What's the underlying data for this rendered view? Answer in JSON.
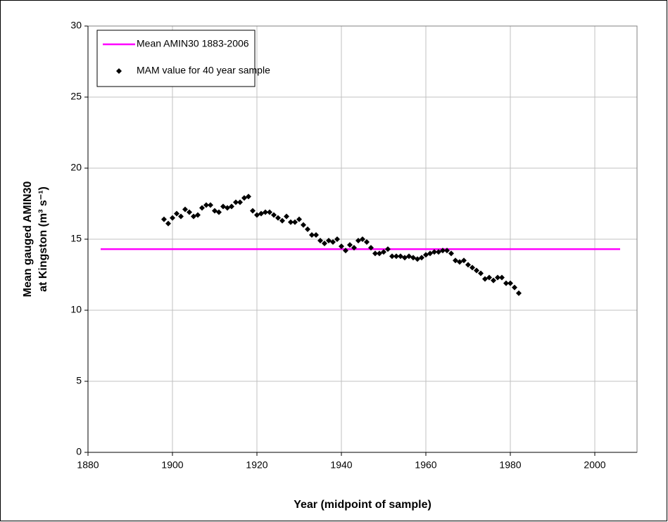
{
  "chart_data": {
    "type": "scatter",
    "xlabel": "Year (midpoint of sample)",
    "ylabel": [
      "Mean gauged AMIN30",
      "at Kingston (m³ s⁻¹)"
    ],
    "xlim": [
      1880,
      2010
    ],
    "xticks": [
      1880,
      1900,
      1920,
      1940,
      1960,
      1980,
      2000
    ],
    "ylim": [
      0,
      30
    ],
    "yticks": [
      0,
      5,
      10,
      15,
      20,
      25,
      30
    ],
    "grid": true,
    "legend": "upper left",
    "series": [
      {
        "name": "Mean AMIN30 1883-2006",
        "color": "#ff00ff",
        "mode": "line",
        "x": [
          1883,
          2006
        ],
        "values": [
          14.3,
          14.3
        ]
      },
      {
        "name": "MAM value for 40 year sample",
        "color": "#000000",
        "mode": "markers",
        "x": [
          1898,
          1899,
          1900,
          1901,
          1902,
          1903,
          1904,
          1905,
          1906,
          1907,
          1908,
          1909,
          1910,
          1911,
          1912,
          1913,
          1914,
          1915,
          1916,
          1917,
          1918,
          1919,
          1920,
          1921,
          1922,
          1923,
          1924,
          1925,
          1926,
          1927,
          1928,
          1929,
          1930,
          1931,
          1932,
          1933,
          1934,
          1935,
          1936,
          1937,
          1938,
          1939,
          1940,
          1941,
          1942,
          1943,
          1944,
          1945,
          1946,
          1947,
          1948,
          1949,
          1950,
          1951,
          1952,
          1953,
          1954,
          1955,
          1956,
          1957,
          1958,
          1959,
          1960,
          1961,
          1962,
          1963,
          1964,
          1965,
          1966,
          1967,
          1968,
          1969,
          1970,
          1971,
          1972,
          1973,
          1974,
          1975,
          1976,
          1977,
          1978,
          1979,
          1980,
          1981,
          1982
        ],
        "values": [
          16.4,
          16.1,
          16.5,
          16.8,
          16.6,
          17.1,
          16.9,
          16.6,
          16.7,
          17.2,
          17.4,
          17.4,
          17.0,
          16.9,
          17.3,
          17.2,
          17.3,
          17.6,
          17.6,
          17.9,
          18.0,
          17.0,
          16.7,
          16.8,
          16.9,
          16.9,
          16.7,
          16.5,
          16.3,
          16.6,
          16.2,
          16.2,
          16.4,
          16.0,
          15.7,
          15.3,
          15.3,
          14.9,
          14.7,
          14.9,
          14.8,
          15.0,
          14.5,
          14.2,
          14.6,
          14.4,
          14.9,
          15.0,
          14.8,
          14.4,
          14.0,
          14.0,
          14.1,
          14.3,
          13.8,
          13.8,
          13.8,
          13.7,
          13.8,
          13.7,
          13.6,
          13.7,
          13.9,
          14.0,
          14.1,
          14.1,
          14.2,
          14.2,
          14.0,
          13.5,
          13.4,
          13.5,
          13.2,
          13.0,
          12.8,
          12.6,
          12.2,
          12.3,
          12.1,
          12.3,
          12.3,
          11.9,
          11.9,
          11.6,
          11.2
        ]
      }
    ]
  }
}
